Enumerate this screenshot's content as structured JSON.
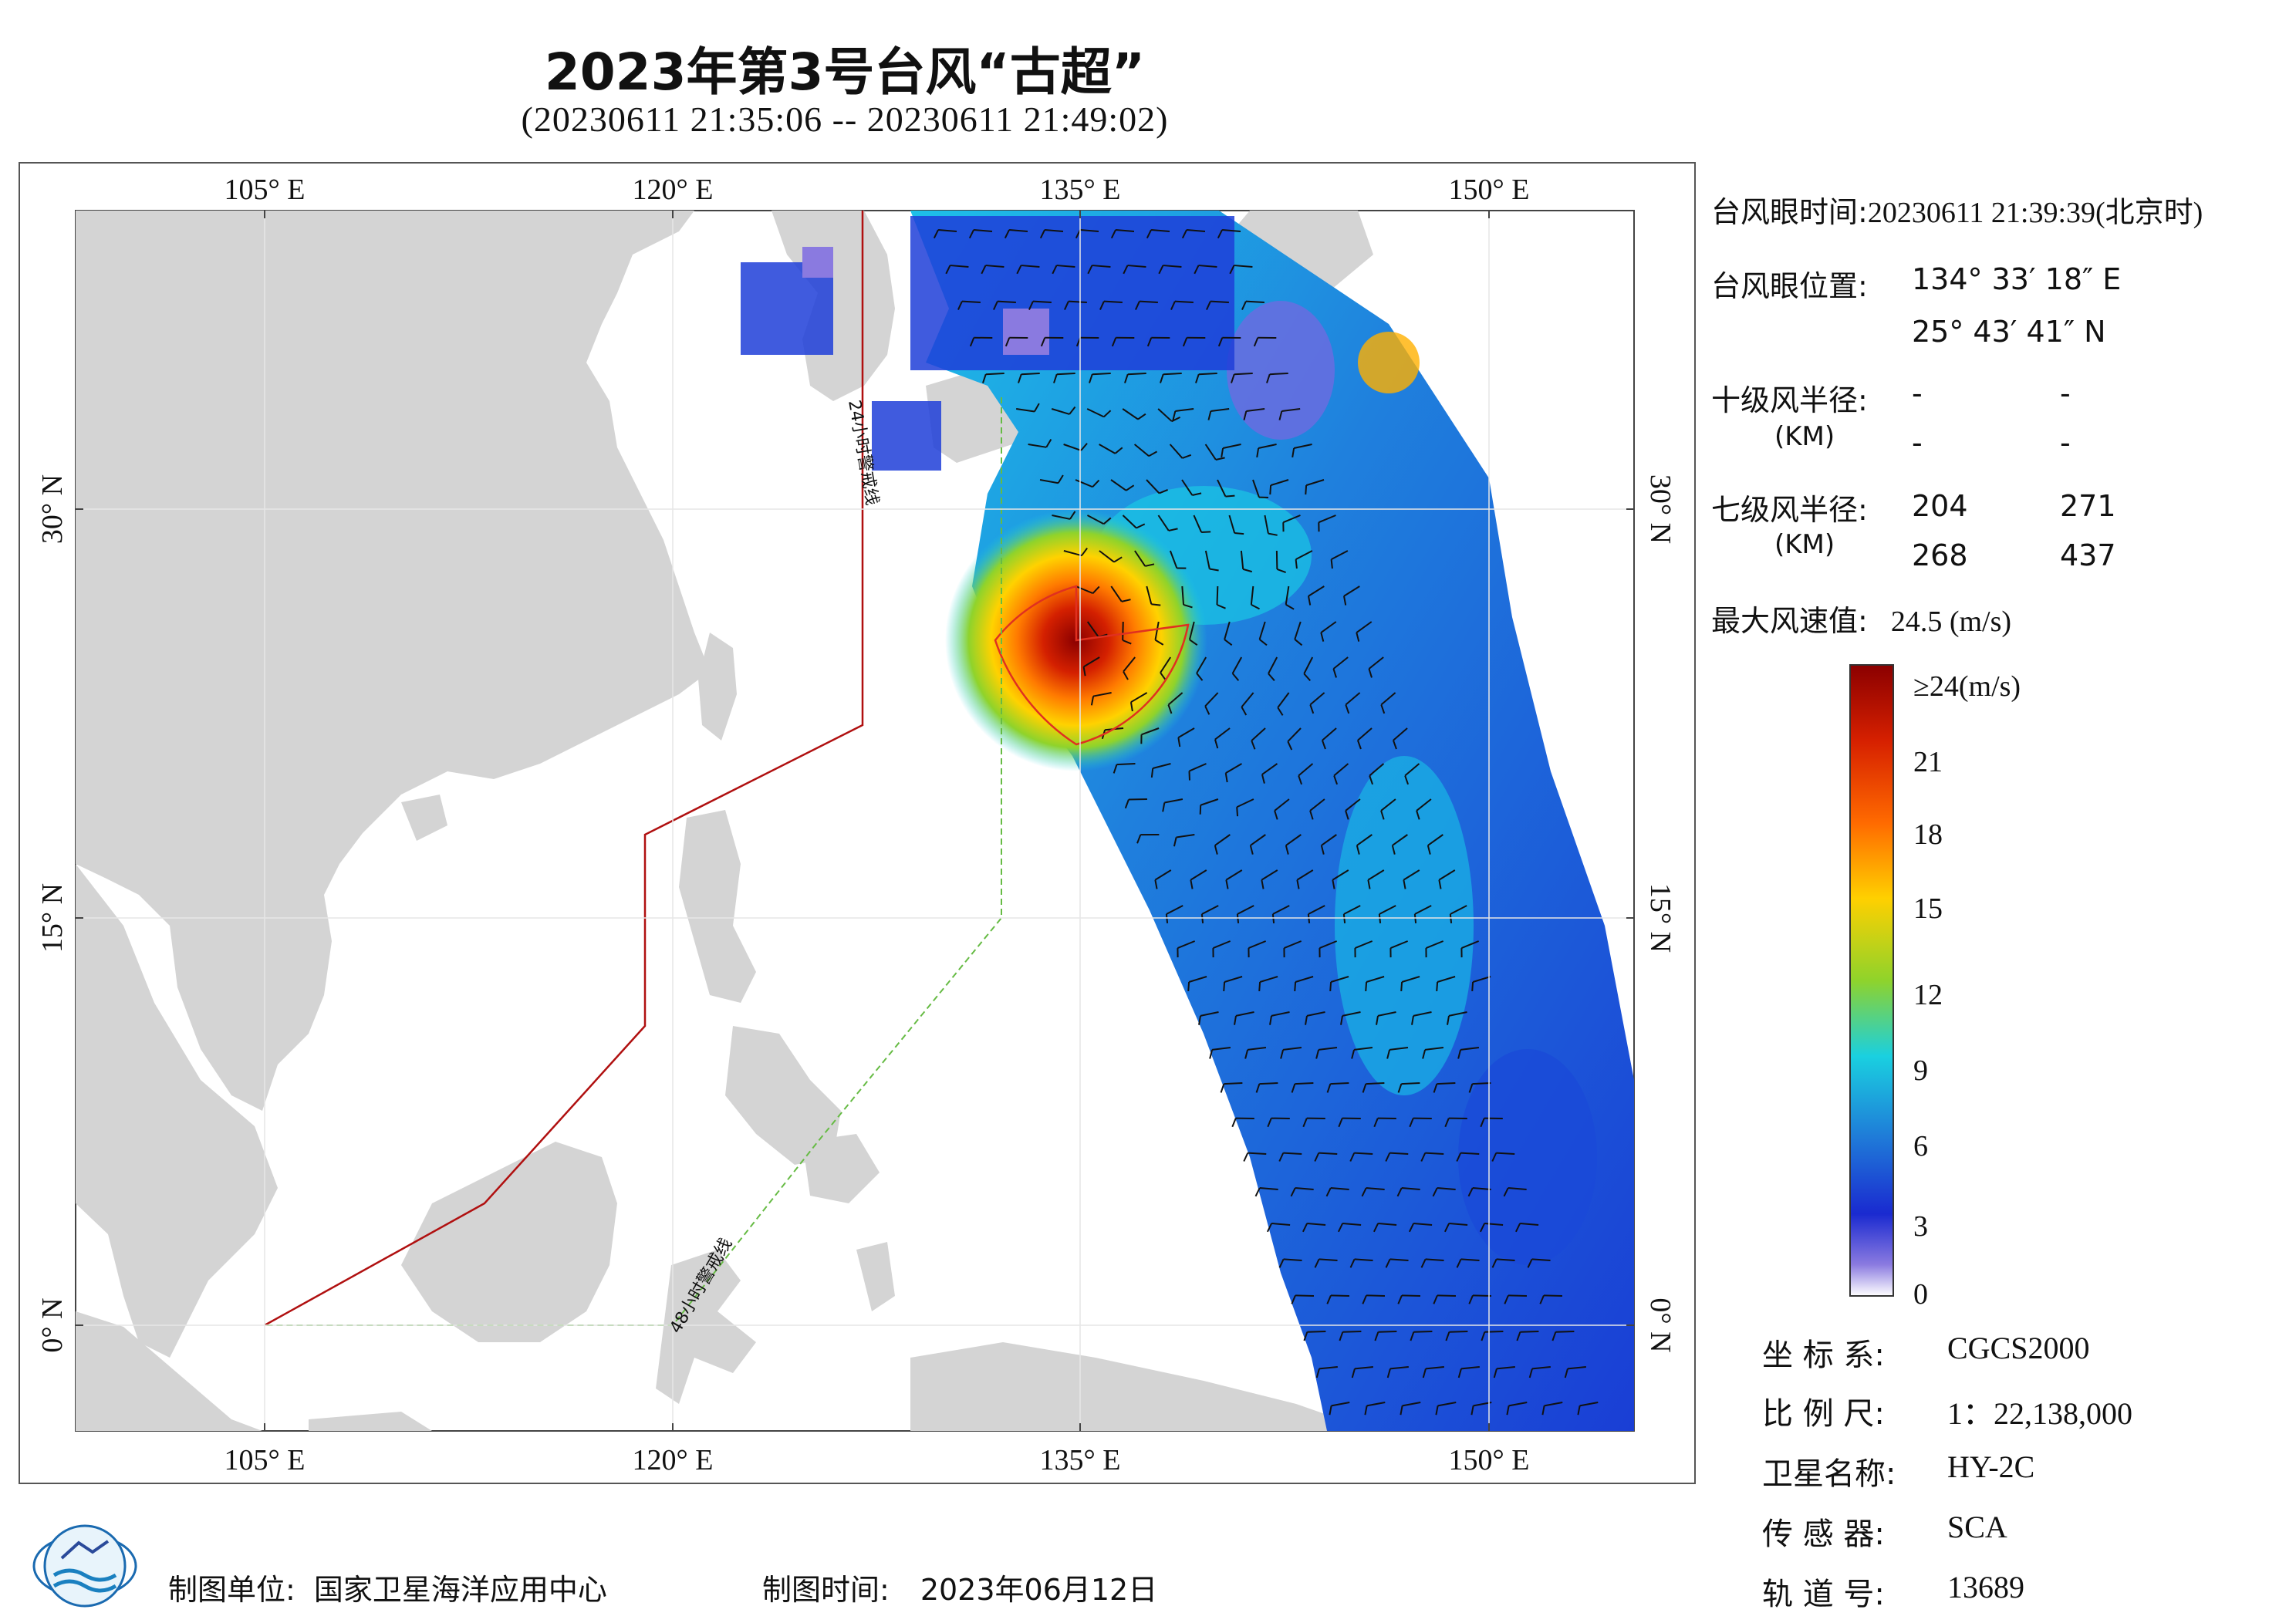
{
  "title": "2023年第3号台风“古超”",
  "subtitle": "(20230611 21:35:06 -- 20230611 21:49:02)",
  "map": {
    "lon_labels": [
      "105° E",
      "120° E",
      "135° E",
      "150° E"
    ],
    "lat_labels": [
      "30° N",
      "15° N",
      "0° N"
    ],
    "warning_line_24h": "24小时警戒线",
    "warning_line_48h": "48小时警戒线",
    "colors": {
      "land": "#d4d4d4",
      "ocean": "#ffffff",
      "warning_24h": "#b01010",
      "warning_48h": "#66bb44",
      "typhoon_circle": "#e03020"
    }
  },
  "info": {
    "eye_time_label": "台风眼时间:",
    "eye_time_value": "20230611 21:39:39(北京时)",
    "eye_pos_label": "台风眼位置:",
    "eye_lon": "134° 33′ 18″ E",
    "eye_lat": "25° 43′ 41″ N",
    "r10_label": "十级风半径:",
    "r10_unit": "(KM)",
    "r10_values": [
      "-",
      "-",
      "-",
      "-"
    ],
    "r7_label": "七级风半径:",
    "r7_unit": "(KM)",
    "r7_values": [
      "204",
      "271",
      "268",
      "437"
    ],
    "max_wind_label": "最大风速值:",
    "max_wind_value": "24.5  (m/s)"
  },
  "colorbar": {
    "labels": [
      "≥24(m/s)",
      "21",
      "18",
      "15",
      "12",
      "9",
      "6",
      "3",
      "0"
    ],
    "colors": [
      "#8b0000",
      "#d62000",
      "#ff6a00",
      "#ffd000",
      "#8fd32b",
      "#1ad0e0",
      "#1f7ad8",
      "#1a2ad0",
      "#8a7ae0",
      "#ffffff"
    ]
  },
  "meta": {
    "crs_label": "坐 标 系:",
    "crs_value": "CGCS2000",
    "scale_label": "比 例 尺:",
    "scale_value": "1：22,138,000",
    "satellite_label": "卫星名称:",
    "satellite_value": "HY-2C",
    "sensor_label": "传 感 器:",
    "sensor_value": "SCA",
    "orbit_label": "轨 道 号:",
    "orbit_value": "13689"
  },
  "footer": {
    "org_label": "制图单位:",
    "org_value": "国家卫星海洋应用中心",
    "date_label": "制图时间:",
    "date_value": "2023年06月12日"
  }
}
